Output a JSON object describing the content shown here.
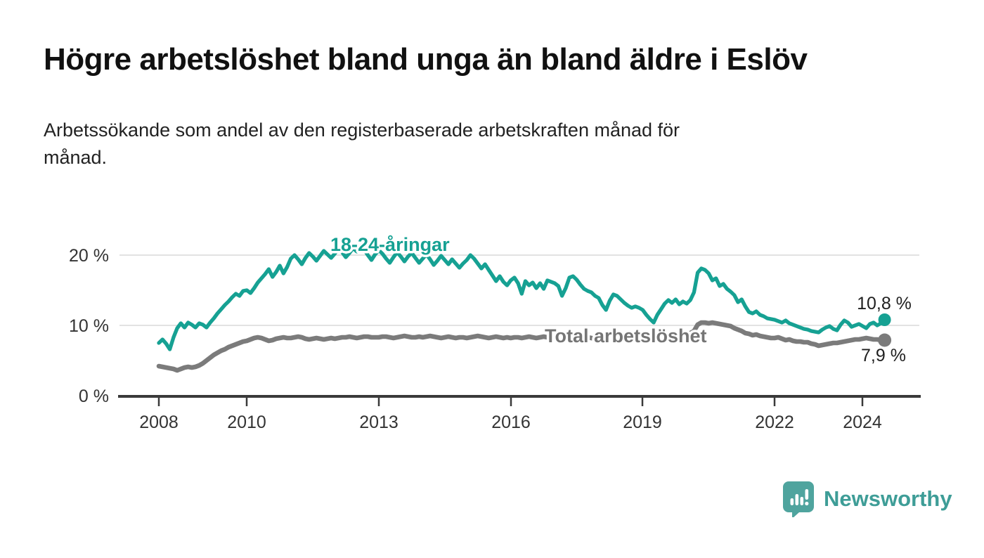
{
  "chart_data": {
    "type": "line",
    "title": "Högre arbetslöshet bland unga än bland äldre i Eslöv",
    "subtitle_lines": [
      "Arbetssökande som andel av den registerbaserade arbetskraften månad för",
      "månad."
    ],
    "x_start": "2008-01",
    "x_end": "2024-07",
    "frequency": "monthly",
    "ylim": [
      0,
      24
    ],
    "grid": "horizontal",
    "y_ticks": [
      {
        "value": 0,
        "label": "0 %"
      },
      {
        "value": 10,
        "label": "10 %"
      },
      {
        "value": 20,
        "label": "20 %"
      }
    ],
    "x_ticks": [
      {
        "value": 2008,
        "label": "2008"
      },
      {
        "value": 2010,
        "label": "2010"
      },
      {
        "value": 2013,
        "label": "2013"
      },
      {
        "value": 2016,
        "label": "2016"
      },
      {
        "value": 2019,
        "label": "2019"
      },
      {
        "value": 2022,
        "label": "2022"
      },
      {
        "value": 2024,
        "label": "2024"
      }
    ],
    "series": [
      {
        "name": "18-24-åringar",
        "label_text": "18-24-åringar",
        "end_label": "10,8 %",
        "end_value": 10.8,
        "color": "#16A193",
        "values": [
          7.5,
          8.0,
          7.4,
          6.6,
          8.3,
          9.6,
          10.3,
          9.7,
          10.4,
          10.1,
          9.7,
          10.3,
          10.1,
          9.7,
          10.4,
          11.0,
          11.7,
          12.3,
          12.9,
          13.4,
          14.0,
          14.5,
          14.2,
          14.9,
          15.0,
          14.6,
          15.3,
          16.1,
          16.7,
          17.3,
          18.0,
          16.9,
          17.6,
          18.5,
          17.4,
          18.3,
          19.5,
          20.0,
          19.4,
          18.7,
          19.6,
          20.3,
          19.8,
          19.2,
          19.9,
          20.6,
          20.1,
          19.6,
          20.2,
          20.9,
          20.4,
          19.7,
          20.3,
          21.0,
          20.5,
          21.5,
          20.8,
          20.0,
          19.3,
          20.1,
          20.7,
          20.2,
          19.5,
          18.9,
          19.7,
          20.4,
          19.8,
          19.1,
          19.8,
          20.3,
          19.6,
          18.9,
          19.5,
          20.1,
          19.4,
          18.6,
          19.2,
          19.9,
          19.3,
          18.7,
          19.4,
          18.8,
          18.2,
          18.8,
          19.3,
          20.0,
          19.5,
          18.8,
          18.1,
          18.7,
          17.9,
          17.1,
          16.3,
          17.0,
          16.2,
          15.7,
          16.4,
          16.8,
          16.0,
          14.5,
          16.3,
          15.7,
          16.1,
          15.3,
          16.0,
          15.2,
          16.4,
          16.2,
          16.0,
          15.6,
          14.2,
          15.3,
          16.8,
          17.0,
          16.5,
          15.8,
          15.2,
          14.9,
          14.7,
          14.2,
          13.9,
          12.9,
          12.2,
          13.5,
          14.4,
          14.2,
          13.7,
          13.2,
          12.8,
          12.5,
          12.7,
          12.5,
          12.2,
          11.5,
          10.9,
          10.4,
          11.5,
          12.3,
          13.1,
          13.6,
          13.2,
          13.7,
          13.0,
          13.4,
          13.1,
          13.6,
          14.7,
          17.5,
          18.1,
          17.9,
          17.4,
          16.4,
          16.7,
          15.6,
          15.9,
          15.2,
          14.8,
          14.3,
          13.3,
          13.7,
          12.7,
          11.9,
          11.7,
          12.0,
          11.5,
          11.3,
          11.0,
          10.9,
          10.8,
          10.6,
          10.4,
          10.7,
          10.3,
          10.1,
          9.9,
          9.7,
          9.5,
          9.4,
          9.2,
          9.1,
          9.0,
          9.4,
          9.7,
          9.9,
          9.5,
          9.3,
          10.1,
          10.7,
          10.4,
          9.8,
          10.0,
          10.2,
          9.9,
          9.6,
          10.2,
          10.4,
          10.0,
          10.3,
          10.8
        ]
      },
      {
        "name": "Total arbetslöshet",
        "label_text": "Total arbetslöshet",
        "end_label": "7,9 %",
        "end_value": 7.9,
        "color": "#7B7B7B",
        "values": [
          4.2,
          4.1,
          4.0,
          3.9,
          3.8,
          3.6,
          3.8,
          4.0,
          4.1,
          4.0,
          4.1,
          4.3,
          4.6,
          5.0,
          5.4,
          5.8,
          6.1,
          6.4,
          6.6,
          6.9,
          7.1,
          7.3,
          7.5,
          7.7,
          7.8,
          8.0,
          8.2,
          8.3,
          8.2,
          8.0,
          7.8,
          7.9,
          8.1,
          8.2,
          8.3,
          8.2,
          8.2,
          8.3,
          8.4,
          8.3,
          8.1,
          8.0,
          8.1,
          8.2,
          8.1,
          8.0,
          8.1,
          8.2,
          8.1,
          8.2,
          8.3,
          8.3,
          8.4,
          8.3,
          8.2,
          8.3,
          8.4,
          8.4,
          8.3,
          8.3,
          8.3,
          8.4,
          8.4,
          8.3,
          8.2,
          8.3,
          8.4,
          8.5,
          8.4,
          8.3,
          8.3,
          8.4,
          8.3,
          8.4,
          8.5,
          8.4,
          8.3,
          8.2,
          8.3,
          8.4,
          8.3,
          8.2,
          8.3,
          8.3,
          8.2,
          8.3,
          8.4,
          8.5,
          8.4,
          8.3,
          8.2,
          8.3,
          8.4,
          8.3,
          8.2,
          8.3,
          8.2,
          8.3,
          8.3,
          8.2,
          8.3,
          8.4,
          8.3,
          8.2,
          8.3,
          8.4,
          8.3,
          8.3,
          8.2,
          8.1,
          8.2,
          8.3,
          8.4,
          8.3,
          8.2,
          8.1,
          8.2,
          8.3,
          8.2,
          8.1,
          8.1,
          8.0,
          8.1,
          8.2,
          8.1,
          8.0,
          8.1,
          8.2,
          8.1,
          8.0,
          8.0,
          8.1,
          8.0,
          7.9,
          8.0,
          8.1,
          8.2,
          8.3,
          8.4,
          8.5,
          8.4,
          8.5,
          8.6,
          8.7,
          8.8,
          8.9,
          9.2,
          10.1,
          10.4,
          10.4,
          10.3,
          10.4,
          10.3,
          10.2,
          10.1,
          10.0,
          9.9,
          9.6,
          9.4,
          9.2,
          8.9,
          8.8,
          8.6,
          8.7,
          8.5,
          8.4,
          8.3,
          8.2,
          8.2,
          8.3,
          8.1,
          7.9,
          8.0,
          7.8,
          7.7,
          7.7,
          7.6,
          7.6,
          7.4,
          7.3,
          7.1,
          7.2,
          7.3,
          7.4,
          7.5,
          7.5,
          7.6,
          7.7,
          7.8,
          7.9,
          8.0,
          8.0,
          8.1,
          8.2,
          8.1,
          8.0,
          8.0,
          7.9,
          7.9
        ]
      }
    ],
    "colors": {
      "grid": "#D8D8D8",
      "axis": "#3A3A3A",
      "teal": "#16A193",
      "gray": "#7B7B7B"
    }
  },
  "branding": {
    "logo_text": "Newsworthy",
    "logo_color": "#4FA49E"
  }
}
